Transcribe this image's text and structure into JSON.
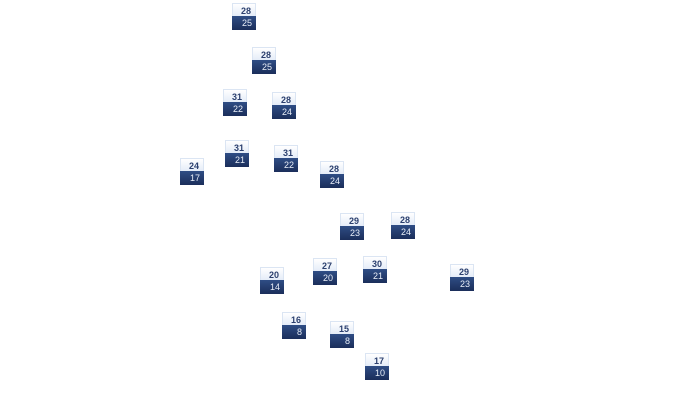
{
  "colors": {
    "high_bg": "#eef3fb",
    "high_text": "#2b3f6e",
    "low_bg": "#23396a",
    "low_text": "#e8eef8"
  },
  "stations": [
    {
      "high": "28",
      "low": "25"
    },
    {
      "high": "28",
      "low": "25"
    },
    {
      "high": "31",
      "low": "22"
    },
    {
      "high": "28",
      "low": "24"
    },
    {
      "high": "31",
      "low": "21"
    },
    {
      "high": "31",
      "low": "22"
    },
    {
      "high": "24",
      "low": "17"
    },
    {
      "high": "28",
      "low": "24"
    },
    {
      "high": "29",
      "low": "23"
    },
    {
      "high": "28",
      "low": "24"
    },
    {
      "high": "20",
      "low": "14"
    },
    {
      "high": "27",
      "low": "20"
    },
    {
      "high": "30",
      "low": "21"
    },
    {
      "high": "29",
      "low": "23"
    },
    {
      "high": "16",
      "low": "8"
    },
    {
      "high": "15",
      "low": "8"
    },
    {
      "high": "17",
      "low": "10"
    }
  ]
}
